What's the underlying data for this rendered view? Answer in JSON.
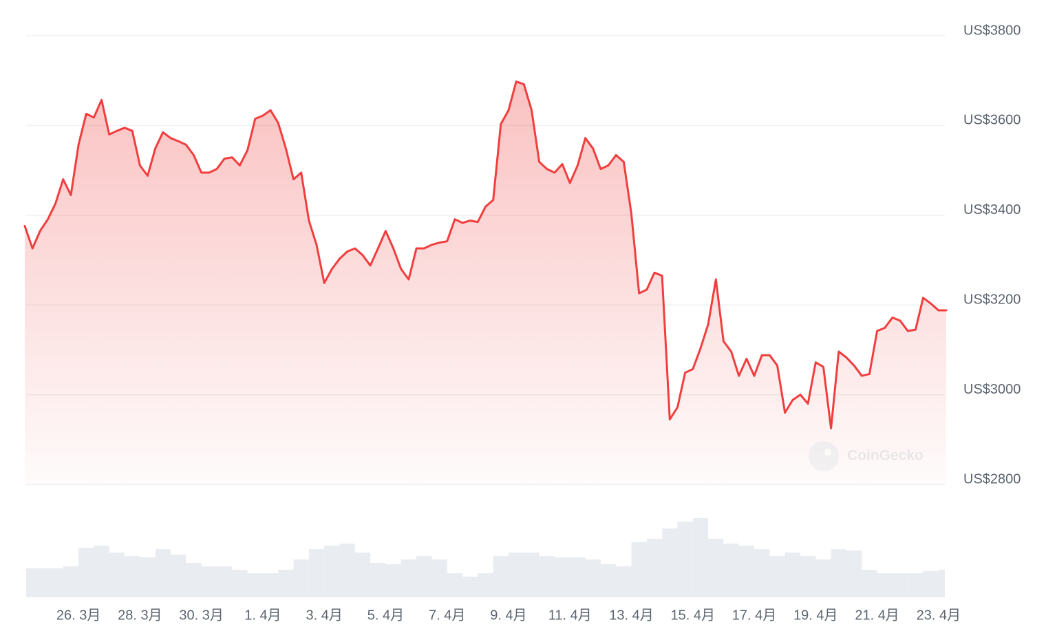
{
  "chart_data": {
    "type": "area",
    "color": "#f03e3e",
    "grid": true,
    "watermark": "CoinGecko",
    "xlim": [
      "03-24 06:00",
      "04-23 06:00"
    ],
    "ylim": [
      2800,
      3800
    ],
    "yticks": [
      {
        "value": 2800,
        "label": "US$2800"
      },
      {
        "value": 3000,
        "label": "US$3000"
      },
      {
        "value": 3200,
        "label": "US$3200"
      },
      {
        "value": 3400,
        "label": "US$3400"
      },
      {
        "value": 3600,
        "label": "US$3600"
      },
      {
        "value": 3800,
        "label": "US$3800"
      }
    ],
    "xticks": [
      {
        "value": "03-26 00:00",
        "label": "26. 3月"
      },
      {
        "value": "03-28 00:00",
        "label": "28. 3月"
      },
      {
        "value": "03-30 00:00",
        "label": "30. 3月"
      },
      {
        "value": "04-01 00:00",
        "label": "1. 4月"
      },
      {
        "value": "04-03 00:00",
        "label": "3. 4月"
      },
      {
        "value": "04-05 00:00",
        "label": "5. 4月"
      },
      {
        "value": "04-07 00:00",
        "label": "7. 4月"
      },
      {
        "value": "04-09 00:00",
        "label": "9. 4月"
      },
      {
        "value": "04-11 00:00",
        "label": "11. 4月"
      },
      {
        "value": "04-13 00:00",
        "label": "13. 4月"
      },
      {
        "value": "04-15 00:00",
        "label": "15. 4月"
      },
      {
        "value": "04-17 00:00",
        "label": "17. 4月"
      },
      {
        "value": "04-19 00:00",
        "label": "19. 4月"
      },
      {
        "value": "04-21 00:00",
        "label": "21. 4月"
      },
      {
        "value": "04-23 00:00",
        "label": "23. 4月"
      }
    ],
    "x": [
      "03-24 06:00",
      "03-24 12:00",
      "03-24 18:00",
      "03-25 00:00",
      "03-25 06:00",
      "03-25 12:00",
      "03-25 18:00",
      "03-26 00:00",
      "03-26 06:00",
      "03-26 12:00",
      "03-26 18:00",
      "03-27 00:00",
      "03-27 06:00",
      "03-27 12:00",
      "03-27 18:00",
      "03-28 00:00",
      "03-28 06:00",
      "03-28 12:00",
      "03-28 18:00",
      "03-29 00:00",
      "03-29 06:00",
      "03-29 12:00",
      "03-29 18:00",
      "03-30 00:00",
      "03-30 06:00",
      "03-30 12:00",
      "03-30 18:00",
      "03-31 00:00",
      "03-31 06:00",
      "03-31 12:00",
      "03-31 18:00",
      "04-01 00:00",
      "04-01 06:00",
      "04-01 12:00",
      "04-01 18:00",
      "04-02 00:00",
      "04-02 06:00",
      "04-02 12:00",
      "04-02 18:00",
      "04-03 00:00",
      "04-03 06:00",
      "04-03 12:00",
      "04-03 18:00",
      "04-04 00:00",
      "04-04 06:00",
      "04-04 12:00",
      "04-04 18:00",
      "04-05 00:00",
      "04-05 06:00",
      "04-05 12:00",
      "04-05 18:00",
      "04-06 00:00",
      "04-06 06:00",
      "04-06 12:00",
      "04-06 18:00",
      "04-07 00:00",
      "04-07 06:00",
      "04-07 12:00",
      "04-07 18:00",
      "04-08 00:00",
      "04-08 06:00",
      "04-08 12:00",
      "04-08 18:00",
      "04-09 00:00",
      "04-09 06:00",
      "04-09 12:00",
      "04-09 18:00",
      "04-10 00:00",
      "04-10 06:00",
      "04-10 12:00",
      "04-10 18:00",
      "04-11 00:00",
      "04-11 06:00",
      "04-11 12:00",
      "04-11 18:00",
      "04-12 00:00",
      "04-12 06:00",
      "04-12 12:00",
      "04-12 18:00",
      "04-13 00:00",
      "04-13 06:00",
      "04-13 12:00",
      "04-13 18:00",
      "04-14 00:00",
      "04-14 06:00",
      "04-14 12:00",
      "04-14 18:00",
      "04-15 00:00",
      "04-15 06:00",
      "04-15 12:00",
      "04-15 18:00",
      "04-16 00:00",
      "04-16 06:00",
      "04-16 12:00",
      "04-16 18:00",
      "04-17 00:00",
      "04-17 06:00",
      "04-17 12:00",
      "04-17 18:00",
      "04-18 00:00",
      "04-18 06:00",
      "04-18 12:00",
      "04-18 18:00",
      "04-19 00:00",
      "04-19 06:00",
      "04-19 12:00",
      "04-19 18:00",
      "04-20 00:00",
      "04-20 06:00",
      "04-20 12:00",
      "04-20 18:00",
      "04-21 00:00",
      "04-21 06:00",
      "04-21 12:00",
      "04-21 18:00",
      "04-22 00:00",
      "04-22 06:00",
      "04-22 12:00",
      "04-22 18:00",
      "04-23 00:00",
      "04-23 06:00"
    ],
    "values": [
      3376,
      3326,
      3365,
      3391,
      3426,
      3480,
      3445,
      3557,
      3626,
      3618,
      3657,
      3580,
      3588,
      3595,
      3588,
      3511,
      3488,
      3549,
      3585,
      3572,
      3565,
      3557,
      3534,
      3495,
      3495,
      3503,
      3526,
      3529,
      3511,
      3545,
      3615,
      3622,
      3634,
      3606,
      3549,
      3480,
      3495,
      3388,
      3334,
      3249,
      3280,
      3303,
      3319,
      3326,
      3311,
      3288,
      3326,
      3365,
      3326,
      3280,
      3257,
      3326,
      3326,
      3334,
      3339,
      3342,
      3391,
      3383,
      3388,
      3385,
      3419,
      3434,
      3603,
      3634,
      3698,
      3692,
      3634,
      3519,
      3503,
      3495,
      3514,
      3472,
      3511,
      3572,
      3549,
      3503,
      3511,
      3534,
      3519,
      3403,
      3226,
      3234,
      3272,
      3265,
      2945,
      2972,
      3049,
      3057,
      3103,
      3157,
      3257,
      3119,
      3096,
      3042,
      3080,
      3042,
      3088,
      3088,
      3065,
      2960,
      2988,
      3000,
      2980,
      3072,
      3062,
      2925,
      3096,
      3083,
      3065,
      3042,
      3046,
      3142,
      3149,
      3172,
      3165,
      3142,
      3145,
      3216,
      3203,
      3188,
      3188
    ],
    "volume": {
      "color": "#e9ecf0",
      "ylim": [
        0,
        130
      ],
      "values": [
        42,
        42,
        42,
        45,
        72,
        75,
        65,
        60,
        58,
        70,
        62,
        50,
        45,
        45,
        40,
        35,
        35,
        40,
        55,
        70,
        75,
        78,
        65,
        50,
        48,
        55,
        60,
        55,
        35,
        30,
        35,
        60,
        65,
        65,
        60,
        58,
        58,
        55,
        48,
        45,
        80,
        85,
        100,
        110,
        115,
        85,
        78,
        75,
        70,
        60,
        65,
        60,
        55,
        70,
        68,
        40,
        35,
        35,
        35,
        38,
        40
      ]
    }
  }
}
